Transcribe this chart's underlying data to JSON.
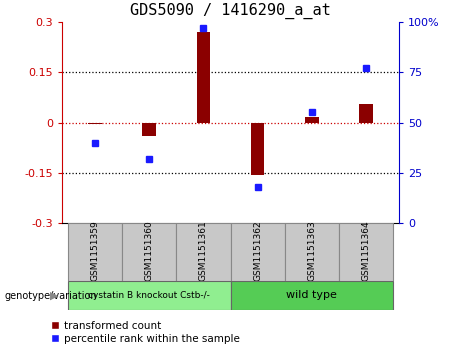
{
  "title": "GDS5090 / 1416290_a_at",
  "samples": [
    "GSM1151359",
    "GSM1151360",
    "GSM1151361",
    "GSM1151362",
    "GSM1151363",
    "GSM1151364"
  ],
  "red_values": [
    -0.005,
    -0.04,
    0.27,
    -0.155,
    0.015,
    0.055
  ],
  "blue_values": [
    40,
    32,
    97,
    18,
    55,
    77
  ],
  "ylim_left": [
    -0.3,
    0.3
  ],
  "ylim_right": [
    0,
    100
  ],
  "yticks_left": [
    -0.3,
    -0.15,
    0.0,
    0.15,
    0.3
  ],
  "yticks_right": [
    0,
    25,
    50,
    75,
    100
  ],
  "ytick_labels_left": [
    "-0.3",
    "-0.15",
    "0",
    "0.15",
    "0.3"
  ],
  "ytick_labels_right": [
    "0",
    "25",
    "50",
    "75",
    "100%"
  ],
  "red_color": "#8B0000",
  "blue_color": "#1a1aff",
  "bar_width": 0.25,
  "group1_label": "cystatin B knockout Cstb-/-",
  "group2_label": "wild type",
  "group1_indices": [
    0,
    1,
    2
  ],
  "group2_indices": [
    3,
    4,
    5
  ],
  "group1_color": "#90EE90",
  "group2_color": "#55CC55",
  "sample_box_color": "#C8C8C8",
  "legend_red": "transformed count",
  "legend_blue": "percentile rank within the sample",
  "bottom_label": "genotype/variation",
  "left_tick_color": "#CC0000",
  "right_tick_color": "#0000CC",
  "title_fontsize": 11
}
